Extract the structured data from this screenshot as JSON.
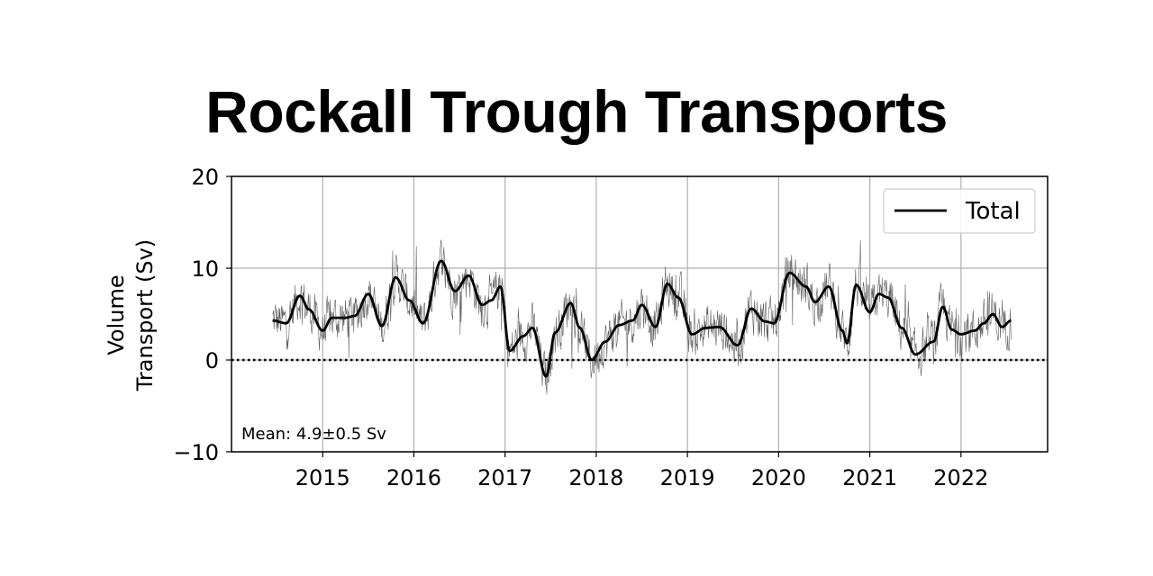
{
  "title": "Rockall Trough Transports",
  "chart_data": {
    "type": "line",
    "ylabel_line1": "Volume",
    "ylabel_line2": "Transport (Sv)",
    "xlabel": "",
    "xlim": [
      2014.0,
      2022.95
    ],
    "ylim": [
      -10,
      20
    ],
    "x_ticks": [
      2015,
      2016,
      2017,
      2018,
      2019,
      2020,
      2021,
      2022
    ],
    "x_tick_labels": [
      "2015",
      "2016",
      "2017",
      "2018",
      "2019",
      "2020",
      "2021",
      "2022"
    ],
    "y_ticks": [
      -10,
      0,
      10,
      20
    ],
    "y_tick_labels": [
      "−10",
      "0",
      "10",
      "20"
    ],
    "grid": true,
    "zero_line": {
      "y": 0,
      "style": "dotted"
    },
    "legend": {
      "position": "top-right",
      "entries": [
        "Total"
      ]
    },
    "annotation": "Mean: 4.9±0.5 Sv",
    "series": [
      {
        "name": "Total",
        "style": "smoothed",
        "x": [
          2014.45,
          2014.6,
          2014.75,
          2014.85,
          2015.0,
          2015.1,
          2015.25,
          2015.35,
          2015.5,
          2015.65,
          2015.8,
          2015.95,
          2016.1,
          2016.3,
          2016.45,
          2016.6,
          2016.75,
          2016.85,
          2016.95,
          2017.05,
          2017.2,
          2017.3,
          2017.45,
          2017.55,
          2017.72,
          2017.82,
          2017.95,
          2018.1,
          2018.25,
          2018.4,
          2018.5,
          2018.65,
          2018.78,
          2018.9,
          2019.05,
          2019.2,
          2019.35,
          2019.55,
          2019.7,
          2019.85,
          2019.95,
          2020.12,
          2020.3,
          2020.4,
          2020.55,
          2020.7,
          2020.75,
          2020.85,
          2021.0,
          2021.1,
          2021.2,
          2021.35,
          2021.5,
          2021.7,
          2021.8,
          2021.9,
          2022.0,
          2022.15,
          2022.25,
          2022.35,
          2022.45,
          2022.55
        ],
        "y": [
          4.3,
          4.0,
          7.0,
          5.5,
          3.2,
          4.6,
          4.6,
          4.8,
          7.2,
          3.7,
          9.0,
          6.5,
          4.0,
          10.8,
          7.5,
          9.2,
          6.0,
          6.5,
          8.0,
          1.0,
          2.6,
          3.5,
          -1.8,
          3.0,
          6.2,
          3.5,
          0.0,
          2.0,
          3.8,
          4.3,
          6.0,
          3.6,
          8.3,
          6.8,
          2.8,
          3.5,
          3.6,
          1.6,
          5.6,
          4.2,
          4.0,
          9.5,
          8.0,
          6.3,
          8.0,
          3.2,
          1.8,
          8.2,
          5.2,
          7.2,
          6.8,
          3.5,
          0.6,
          2.0,
          5.8,
          3.3,
          2.8,
          3.2,
          4.0,
          5.0,
          3.6,
          4.3
        ]
      }
    ]
  }
}
